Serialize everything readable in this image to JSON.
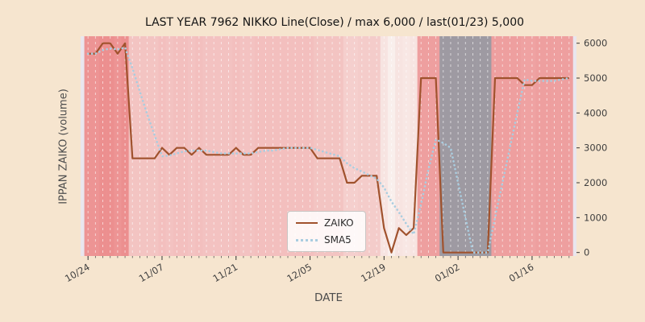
{
  "figure": {
    "background_color": "#f6e5cf"
  },
  "chart_data": {
    "type": "line",
    "title": "LAST YEAR 7962 NIKKO Line(Close) / max 6,000 / last(01/23) 5,000",
    "xlabel": "DATE",
    "ylabel": "IPPAN ZAIKO (volume)",
    "x_tick_labels": [
      "10/24",
      "11/07",
      "11/21",
      "12/05",
      "12/19",
      "01/02",
      "01/16"
    ],
    "x_tick_indices": [
      0,
      10,
      20,
      30,
      40,
      50,
      60
    ],
    "y_ticks": [
      0,
      1000,
      2000,
      3000,
      4000,
      5000,
      6000
    ],
    "xlim": [
      -1,
      66
    ],
    "ylim": [
      -100,
      6200
    ],
    "grid": "vertical-dashed-white",
    "legend_position": "lower-center-left",
    "dates": [
      "10/24",
      "10/25",
      "10/26",
      "10/27",
      "10/28",
      "10/31",
      "11/01",
      "11/02",
      "11/03",
      "11/04",
      "11/07",
      "11/08",
      "11/09",
      "11/10",
      "11/11",
      "11/14",
      "11/15",
      "11/16",
      "11/17",
      "11/18",
      "11/21",
      "11/22",
      "11/23",
      "11/24",
      "11/25",
      "11/28",
      "11/29",
      "11/30",
      "12/01",
      "12/02",
      "12/05",
      "12/06",
      "12/07",
      "12/08",
      "12/09",
      "12/12",
      "12/13",
      "12/14",
      "12/15",
      "12/16",
      "12/19",
      "12/20",
      "12/21",
      "12/22",
      "12/23",
      "12/26",
      "12/27",
      "12/28",
      "12/29",
      "12/30",
      "01/02",
      "01/03",
      "01/04",
      "01/05",
      "01/06",
      "01/09",
      "01/10",
      "01/11",
      "01/12",
      "01/13",
      "01/16",
      "01/17",
      "01/18",
      "01/19",
      "01/20",
      "01/23"
    ],
    "series": [
      {
        "name": "ZAIKO",
        "color": "#a0522d",
        "style": "solid",
        "values": [
          5700,
          5700,
          6000,
          6000,
          5700,
          6000,
          2700,
          2700,
          2700,
          2700,
          3000,
          2800,
          3000,
          3000,
          2800,
          3000,
          2800,
          2800,
          2800,
          2800,
          3000,
          2800,
          2800,
          3000,
          3000,
          3000,
          3000,
          3000,
          3000,
          3000,
          3000,
          2700,
          2700,
          2700,
          2700,
          2000,
          2000,
          2200,
          2200,
          2200,
          700,
          0,
          700,
          500,
          700,
          5000,
          5000,
          5000,
          0,
          0,
          0,
          0,
          0,
          0,
          0,
          5000,
          5000,
          5000,
          5000,
          4800,
          4800,
          5000,
          5000,
          5000,
          5000,
          5000
        ]
      },
      {
        "name": "SMA5",
        "color": "#a9cde0",
        "style": "dotted",
        "derived": "5-day moving average of ZAIKO",
        "values": [
          5700,
          5700,
          5800,
          5850,
          5820,
          5880,
          5280,
          4620,
          3960,
          3360,
          2760,
          2780,
          2840,
          2900,
          2920,
          2920,
          2920,
          2880,
          2840,
          2840,
          2840,
          2840,
          2840,
          2880,
          2920,
          2920,
          2960,
          3000,
          3000,
          3000,
          3000,
          2940,
          2880,
          2820,
          2760,
          2560,
          2420,
          2320,
          2220,
          2120,
          1860,
          1460,
          1160,
          820,
          520,
          1380,
          2380,
          3240,
          3140,
          3000,
          2000,
          1000,
          0,
          0,
          0,
          1000,
          2000,
          3000,
          4000,
          4960,
          4920,
          4920,
          4920,
          4920,
          4960,
          5000
        ]
      }
    ],
    "band_colors": {
      "base": "#e9e6ee",
      "low": "#f9efec",
      "high": "#ec8f8f",
      "zero": "#9e9aa2",
      "note": "per-day background stripe tinted by ZAIKO value; gray when value is 0 for consecutive days"
    },
    "max_value": 6000,
    "last_value": 5000,
    "last_date": "01/23"
  }
}
